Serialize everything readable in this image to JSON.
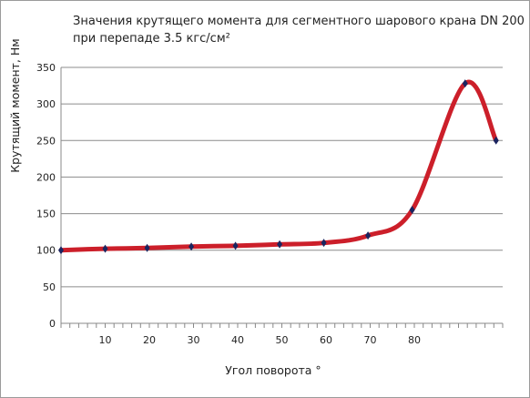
{
  "chart_data": {
    "type": "line",
    "title_lines": [
      "Значения крутящего момента для сегментного шарового крана DN 200",
      "при перепаде 3.5 кгс/см²"
    ],
    "xlabel": "Угол поворота °",
    "ylabel": "Крутящий момент, Нм",
    "ylim": [
      0,
      350
    ],
    "xlim": [
      0,
      100
    ],
    "yticks": [
      0,
      50,
      100,
      150,
      200,
      250,
      300,
      350
    ],
    "xtick_labels": [
      10,
      20,
      30,
      40,
      50,
      60,
      70,
      80
    ],
    "grid": true,
    "legend": "none",
    "series": [
      {
        "x": [
          0,
          10,
          19.5,
          29.5,
          39.5,
          49.5,
          59.5,
          69.5,
          79.5,
          91.5,
          98.5
        ],
        "y": [
          100,
          102,
          103,
          105,
          106,
          108,
          110,
          120,
          155,
          328,
          250
        ]
      }
    ],
    "colors": {
      "line": "#cc1f2a",
      "marker": "#1a2560",
      "grid": "#8c8c8c",
      "axis": "#888888"
    }
  }
}
